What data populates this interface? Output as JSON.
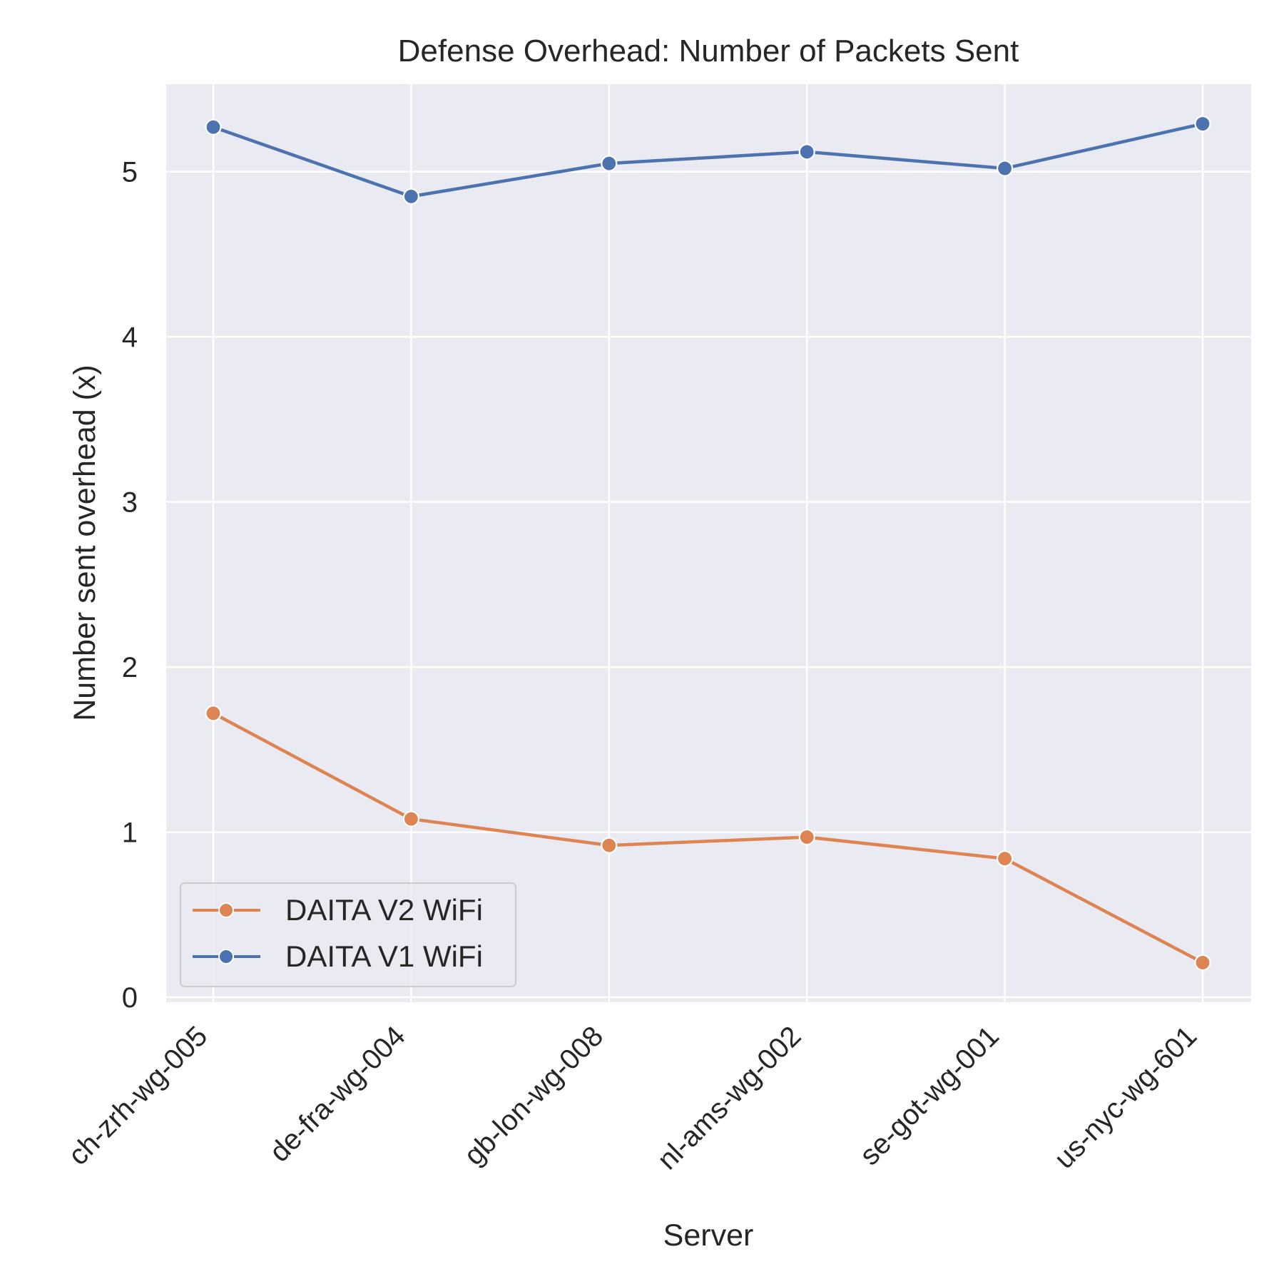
{
  "chart_data": {
    "type": "line",
    "title": "Defense Overhead: Number of Packets Sent",
    "xlabel": "Server",
    "ylabel": "Number sent overhead (x)",
    "categories": [
      "ch-zrh-wg-005",
      "de-fra-wg-004",
      "gb-lon-wg-008",
      "nl-ams-wg-002",
      "se-got-wg-001",
      "us-nyc-wg-601"
    ],
    "ylim": [
      -0.03,
      5.53
    ],
    "yticks": [
      0,
      1,
      2,
      3,
      4,
      5
    ],
    "grid": true,
    "legend_position": "lower-left",
    "series": [
      {
        "name": "DAITA V2 WiFi",
        "color": "#dd8452",
        "values": [
          1.72,
          1.08,
          0.92,
          0.97,
          0.84,
          0.21
        ]
      },
      {
        "name": "DAITA V1 WiFi",
        "color": "#4c72b0",
        "values": [
          5.27,
          4.85,
          5.05,
          5.12,
          5.02,
          5.29
        ]
      }
    ]
  }
}
